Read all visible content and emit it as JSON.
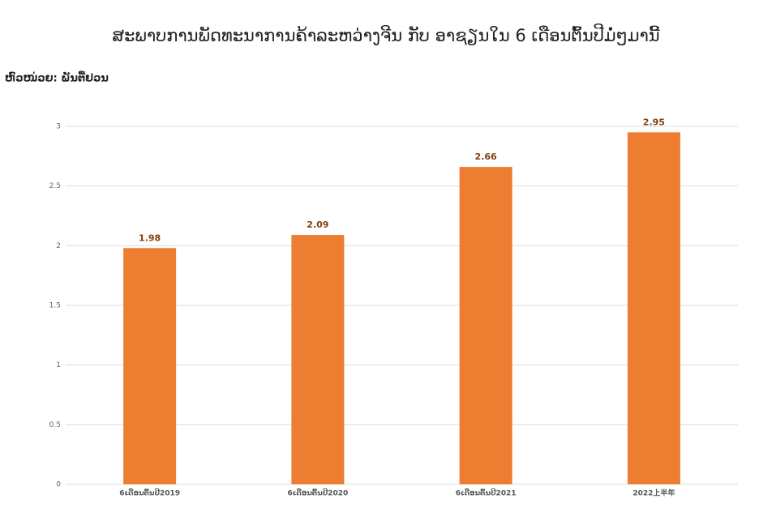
{
  "chart_data": {
    "type": "bar",
    "title": "ສະພາບການພັດທະນາການຄ້າລະຫວ່າງຈີນ ກັບ ອາຊຽນໃນ 6 ເດືອນຕົ້ນປີມໍ່ໆມານີ້",
    "y_label": "ຫົວໜ່ວຍ: ພັນຕື້ຢວນ",
    "categories": [
      "6ເດືອນຕົ້ນປີ2019",
      "6ເດືອນຕົ້ນປີ2020",
      "6ເດືອນຕົ້ນປີ2021",
      "2022上半年"
    ],
    "values": [
      1.98,
      2.09,
      2.66,
      2.95
    ],
    "color": "#ed7d31",
    "ylim": [
      0,
      3
    ],
    "yticks": [
      0,
      0.5,
      1,
      1.5,
      2,
      2.5,
      3
    ],
    "grid": true
  }
}
